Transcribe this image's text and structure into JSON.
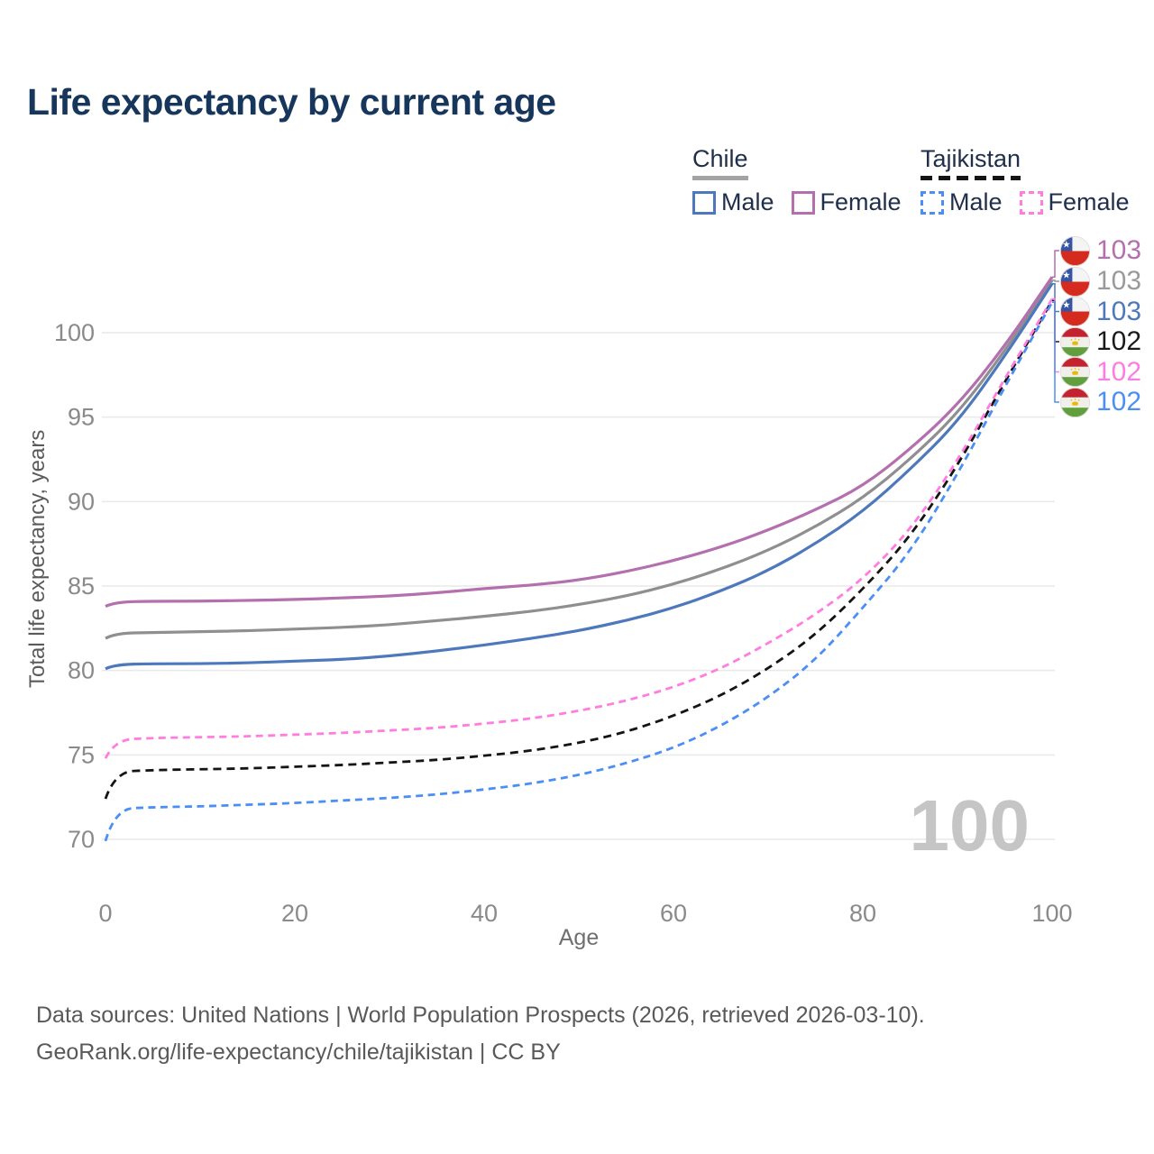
{
  "title": "Life expectancy by current age",
  "watermark": "100",
  "legend": {
    "groups": [
      {
        "country": "Chile",
        "style": "solid",
        "items": [
          {
            "label": "Male",
            "color": "#4d78bc"
          },
          {
            "label": "Female",
            "color": "#b36fae"
          }
        ],
        "underline_color": "#a3a3a3"
      },
      {
        "country": "Tajikistan",
        "style": "dashed",
        "items": [
          {
            "label": "Male",
            "color": "#4b8ff5"
          },
          {
            "label": "Female",
            "color": "#ff7ce0"
          }
        ],
        "underline_color": "#141414"
      }
    ]
  },
  "chart_data": {
    "type": "line",
    "title": "Life expectancy by current age",
    "xlabel": "Age",
    "ylabel": "Total life expectancy, years",
    "xlim": [
      0,
      100
    ],
    "ylim": [
      68,
      104
    ],
    "x_ticks": [
      0,
      20,
      40,
      60,
      80,
      100
    ],
    "y_ticks": [
      70,
      75,
      80,
      85,
      90,
      95,
      100
    ],
    "grid": "horizontal",
    "legend_position": "top-right",
    "x": [
      0,
      1,
      5,
      10,
      15,
      20,
      25,
      30,
      35,
      40,
      45,
      50,
      55,
      60,
      65,
      70,
      75,
      80,
      85,
      90,
      95,
      100
    ],
    "series": [
      {
        "id": "chile-total",
        "name": "Chile",
        "sex": "Total",
        "color": "#8f8f8f",
        "dash": null,
        "end_label": "103",
        "values": [
          81.9,
          82.2,
          82.25,
          82.3,
          82.35,
          82.45,
          82.55,
          82.7,
          82.95,
          83.2,
          83.5,
          83.9,
          84.4,
          85.1,
          86.0,
          87.1,
          88.5,
          90.2,
          92.5,
          95.2,
          98.9,
          103.1
        ]
      },
      {
        "id": "chile-male",
        "name": "Chile",
        "sex": "Male",
        "color": "#4d78bc",
        "dash": null,
        "end_label": "103",
        "values": [
          80.1,
          80.35,
          80.4,
          80.4,
          80.45,
          80.55,
          80.65,
          80.85,
          81.15,
          81.5,
          81.9,
          82.35,
          82.95,
          83.7,
          84.7,
          85.9,
          87.5,
          89.4,
          91.9,
          94.7,
          98.6,
          102.9
        ]
      },
      {
        "id": "chile-female",
        "name": "Chile",
        "sex": "Female",
        "color": "#b36fae",
        "dash": null,
        "end_label": "103",
        "values": [
          83.8,
          84.05,
          84.1,
          84.1,
          84.15,
          84.2,
          84.3,
          84.4,
          84.6,
          84.85,
          85.05,
          85.35,
          85.85,
          86.5,
          87.3,
          88.3,
          89.5,
          90.9,
          93.1,
          95.7,
          99.2,
          103.3
        ]
      },
      {
        "id": "tajikistan-total",
        "name": "Tajikistan",
        "sex": "Total",
        "color": "#141414",
        "dash": "9 6",
        "end_label": "102",
        "values": [
          72.4,
          74.0,
          74.1,
          74.15,
          74.2,
          74.3,
          74.4,
          74.55,
          74.7,
          74.95,
          75.25,
          75.7,
          76.35,
          77.3,
          78.5,
          80.1,
          82.1,
          84.8,
          87.9,
          92.1,
          97.1,
          101.9
        ]
      },
      {
        "id": "tajikistan-male",
        "name": "Tajikistan",
        "sex": "Male",
        "color": "#4b8ff5",
        "dash": "8 5.5",
        "end_label": "102",
        "values": [
          69.9,
          71.8,
          71.9,
          71.95,
          72.05,
          72.15,
          72.3,
          72.45,
          72.65,
          72.95,
          73.3,
          73.8,
          74.5,
          75.4,
          76.7,
          78.4,
          80.6,
          83.7,
          87.0,
          91.6,
          96.8,
          101.8
        ]
      },
      {
        "id": "tajikistan-female",
        "name": "Tajikistan",
        "sex": "Female",
        "color": "#ff7ce0",
        "dash": "8 5.5",
        "end_label": "102",
        "values": [
          74.8,
          75.9,
          76.0,
          76.05,
          76.1,
          76.2,
          76.3,
          76.45,
          76.6,
          76.85,
          77.15,
          77.6,
          78.2,
          79.0,
          80.1,
          81.6,
          83.3,
          85.4,
          88.3,
          92.4,
          97.3,
          102.0
        ]
      }
    ]
  },
  "right_labels": [
    {
      "series_id": "chile-female",
      "flag": "chile",
      "value": "103",
      "color": "#b36fae"
    },
    {
      "series_id": "chile-total",
      "flag": "chile",
      "value": "103",
      "color": "#9a9a9a"
    },
    {
      "series_id": "chile-male",
      "flag": "chile",
      "value": "103",
      "color": "#4d78bc"
    },
    {
      "series_id": "tajikistan-total",
      "flag": "tajikistan",
      "value": "102",
      "color": "#1a1a1a"
    },
    {
      "series_id": "tajikistan-female",
      "flag": "tajikistan",
      "value": "102",
      "color": "#ff7ce0"
    },
    {
      "series_id": "tajikistan-male",
      "flag": "tajikistan",
      "value": "102",
      "color": "#4b8ff5"
    }
  ],
  "footer": {
    "line1": "Data sources: United Nations | World Population Prospects (2026, retrieved 2026-03-10).",
    "line2": "GeoRank.org/life-expectancy/chile/tajikistan | CC BY"
  }
}
